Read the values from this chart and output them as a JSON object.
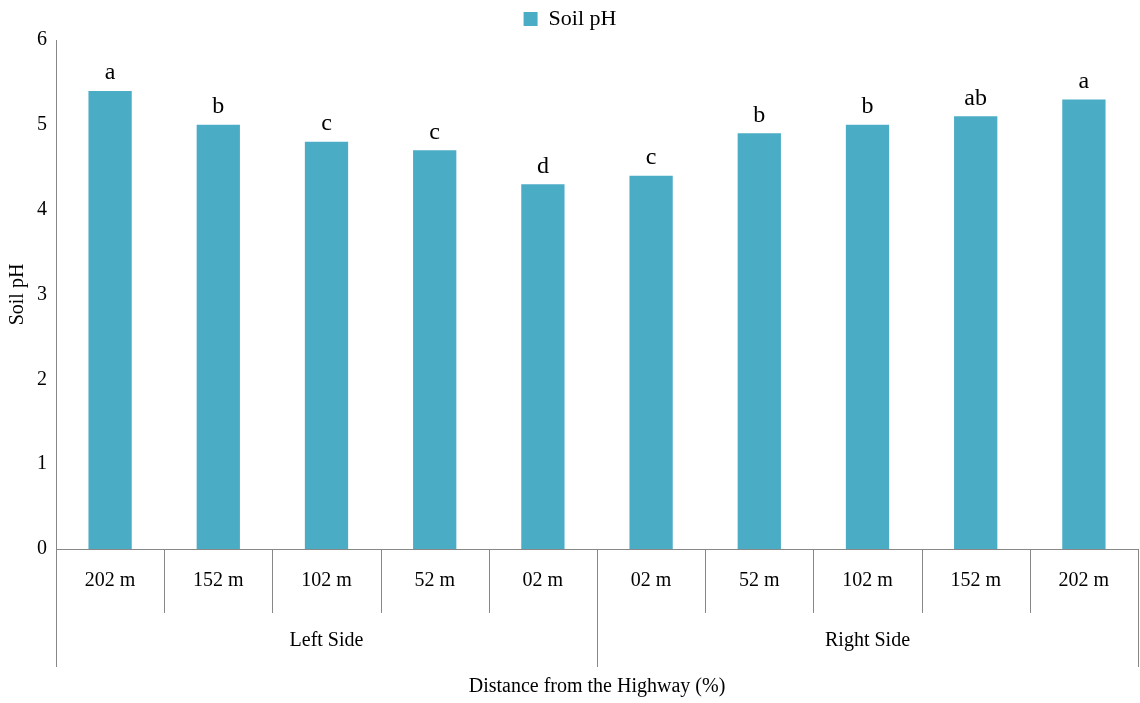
{
  "chart_data": {
    "type": "bar",
    "xlabel": "Distance from the Highway (%)",
    "ylabel": "Soil pH",
    "categories": [
      "202 m",
      "152 m",
      "102 m",
      "52 m",
      "02 m",
      "02 m",
      "52 m",
      "102 m",
      "152 m",
      "202 m"
    ],
    "series": [
      {
        "name": "Soil pH",
        "color": "#4bacc6",
        "values": [
          5.4,
          5.0,
          4.8,
          4.7,
          4.3,
          4.4,
          4.9,
          5.0,
          5.1,
          5.3
        ],
        "value_labels": [
          "a",
          "b",
          "c",
          "c",
          "d",
          "c",
          "b",
          "b",
          "ab",
          "a"
        ]
      }
    ],
    "annotations": [
      "Left Side",
      "Right Side"
    ],
    "ylim": [
      0,
      6
    ],
    "yticks": [
      0,
      1,
      2,
      3,
      4,
      5,
      6
    ],
    "grid": false,
    "legend": "top"
  }
}
